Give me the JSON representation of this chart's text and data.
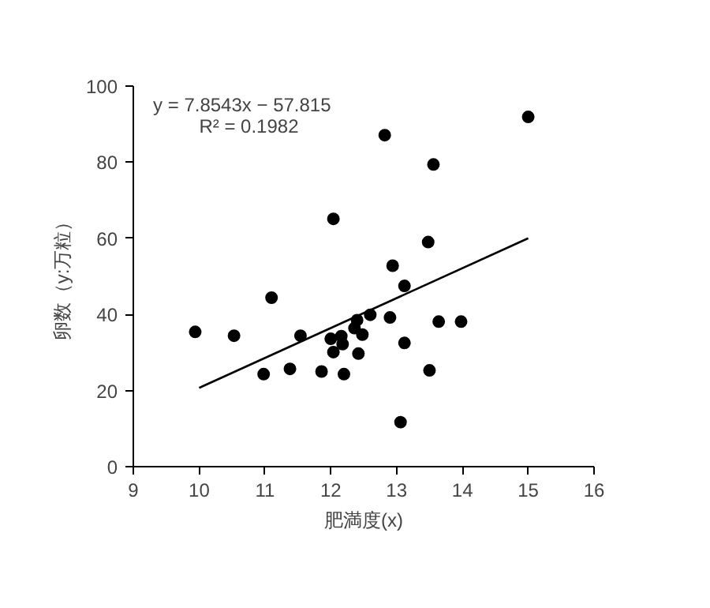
{
  "chart_data": {
    "type": "scatter",
    "xlabel": "肥満度(x)",
    "ylabel": "卵数（y:万粒）",
    "annotations": [
      "y = 7.8543x − 57.815",
      "R² = 0.1982"
    ],
    "xlim": [
      9,
      16
    ],
    "xticks": [
      9,
      10,
      11,
      12,
      13,
      14,
      15,
      16
    ],
    "ylim": [
      0,
      100
    ],
    "yticks": [
      0,
      20,
      40,
      60,
      80,
      100
    ],
    "grid": false,
    "series": [
      {
        "color": "#000000",
        "marker": "circle",
        "x": [
          9.94,
          10.53,
          10.98,
          11.1,
          11.38,
          11.54,
          11.86,
          12.04,
          12.0,
          12.04,
          12.18,
          12.16,
          12.2,
          12.36,
          12.4,
          12.48,
          12.42,
          12.6,
          12.82,
          12.9,
          12.94,
          13.12,
          13.12,
          13.06,
          13.48,
          13.56,
          13.5,
          13.64,
          13.98,
          15.0
        ],
        "values": [
          35.4,
          34.4,
          24.3,
          44.4,
          25.7,
          34.4,
          25,
          65.1,
          33.6,
          30.1,
          32.2,
          34.3,
          24.3,
          36.4,
          38.5,
          34.7,
          29.7,
          39.9,
          87.1,
          39.2,
          52.8,
          47.5,
          32.5,
          11.7,
          59,
          79.4,
          25.3,
          38.1,
          38.1,
          91.9
        ]
      },
      {
        "type": "line",
        "color": "#000000",
        "x": [
          10,
          15
        ],
        "values": [
          20.7,
          60
        ]
      }
    ]
  }
}
